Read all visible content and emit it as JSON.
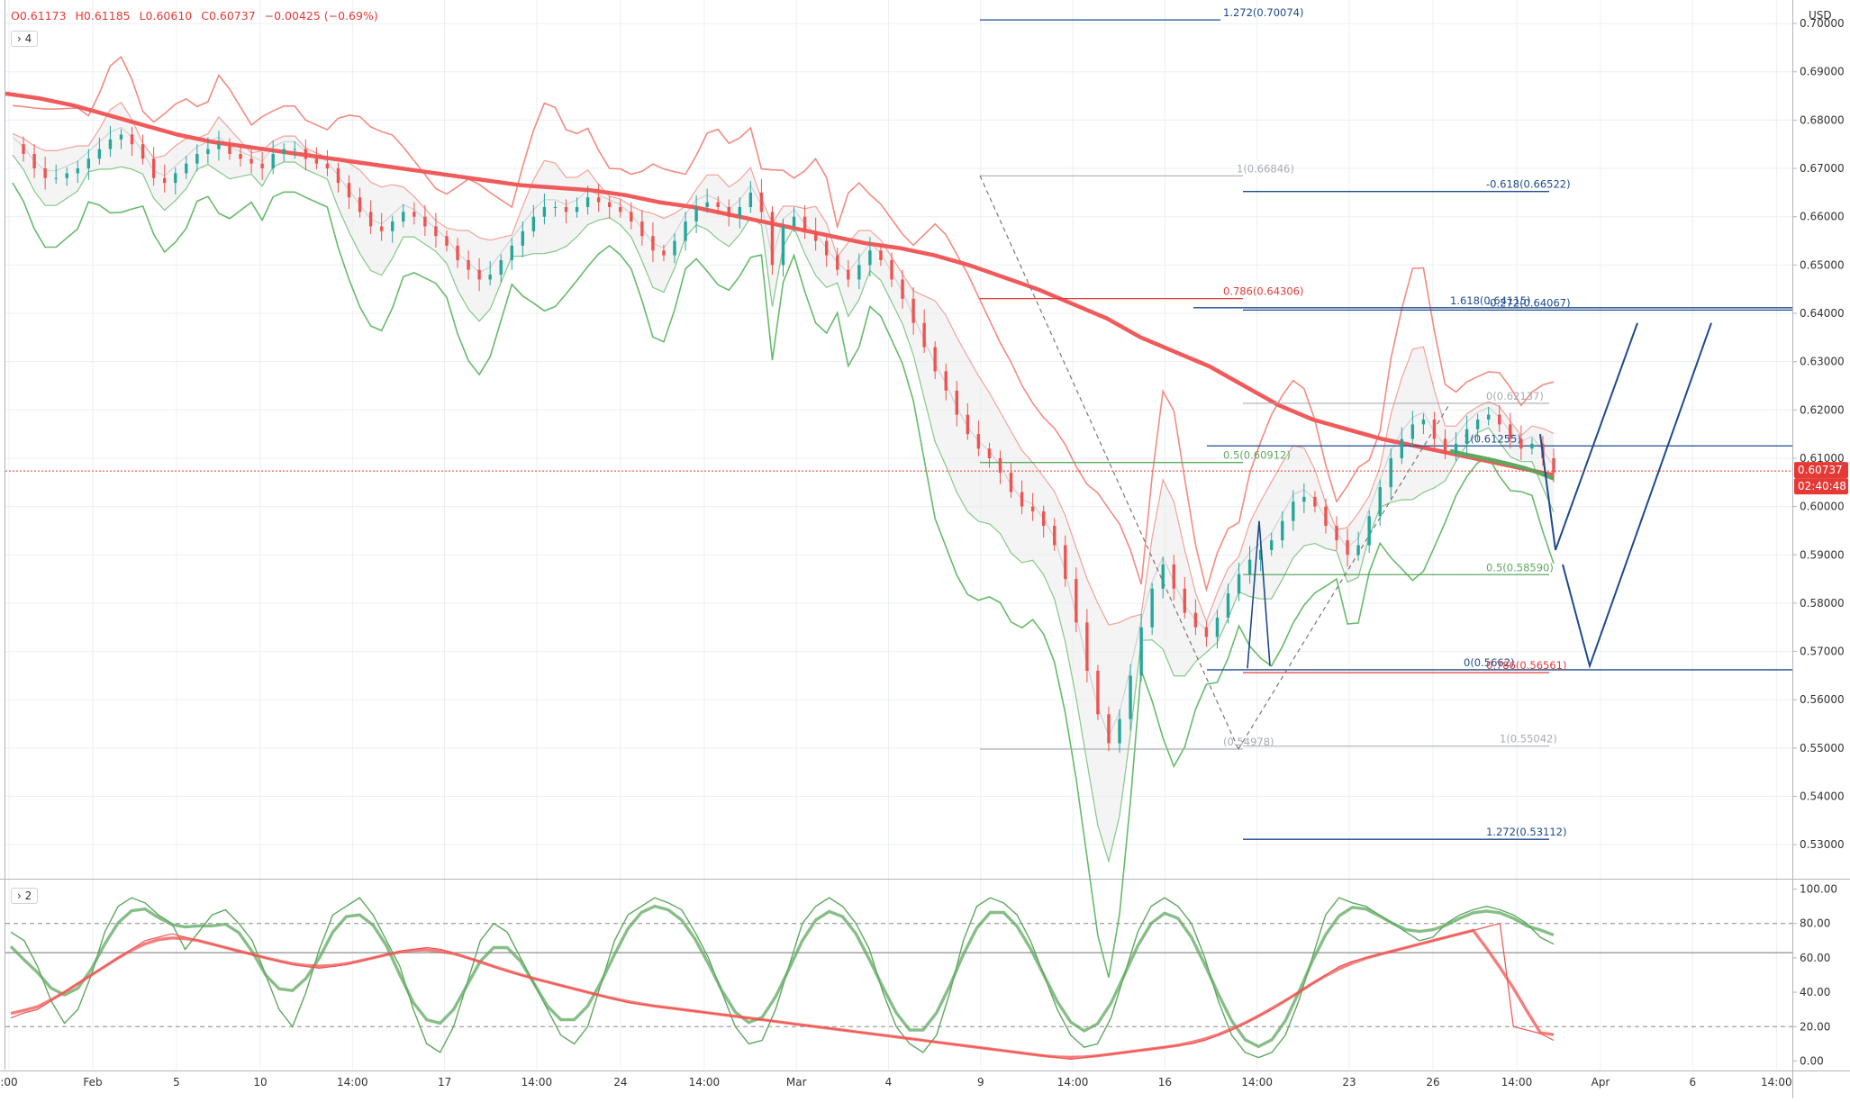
{
  "header": {
    "ohlc": {
      "open": "O0.61173",
      "high": "H0.61185",
      "low": "L0.60610",
      "close": "C0.60737",
      "change": "−0.00425 (−0.69%)"
    },
    "main_pane_tag": "4",
    "osc_pane_tag": "2",
    "currency": "USD"
  },
  "price_badge": {
    "value": "0.60737",
    "countdown": "02:40:48"
  },
  "colors": {
    "up": "#26a69a",
    "down": "#ef5350",
    "ma": "#f05a5a",
    "ma_green": "#5fa85f",
    "band_red": "#f28b82",
    "band_green": "#66bb6a",
    "fib_blue": "#1e4a8c",
    "grid": "#eceff3"
  },
  "chart_data": [
    {
      "type": "candlestick",
      "y_axis": {
        "range": [
          0.525,
          0.703
        ],
        "ticks": [
          "0.53000",
          "0.54000",
          "0.55000",
          "0.56000",
          "0.57000",
          "0.58000",
          "0.59000",
          "0.60000",
          "0.61000",
          "0.62000",
          "0.63000",
          "0.64000",
          "0.65000",
          "0.66000",
          "0.67000",
          "0.68000",
          "0.69000",
          "0.70000"
        ],
        "tick_values": [
          0.53,
          0.54,
          0.55,
          0.56,
          0.57,
          0.58,
          0.59,
          0.6,
          0.61,
          0.62,
          0.63,
          0.64,
          0.65,
          0.66,
          0.67,
          0.68,
          0.69,
          0.7
        ]
      },
      "x_axis": {
        "ticks": [
          ":00",
          "Feb",
          "5",
          "10",
          "14:00",
          "17",
          "14:00",
          "24",
          "14:00",
          "Mar",
          "4",
          "9",
          "14:00",
          "16",
          "14:00",
          "23",
          "26",
          "14:00",
          "Apr",
          "6",
          "14:00"
        ],
        "tick_index": [
          0,
          10,
          20,
          30,
          41,
          52,
          63,
          73,
          83,
          94,
          105,
          116,
          127,
          138,
          149,
          160,
          170,
          180,
          190,
          201,
          211
        ]
      },
      "price_path": [
        0.675,
        0.673,
        0.67,
        0.668,
        0.668,
        0.669,
        0.67,
        0.672,
        0.674,
        0.676,
        0.677,
        0.675,
        0.672,
        0.668,
        0.667,
        0.669,
        0.671,
        0.673,
        0.674,
        0.675,
        0.673,
        0.672,
        0.671,
        0.67,
        0.673,
        0.674,
        0.674,
        0.672,
        0.671,
        0.67,
        0.667,
        0.664,
        0.661,
        0.658,
        0.657,
        0.659,
        0.661,
        0.66,
        0.658,
        0.656,
        0.654,
        0.651,
        0.649,
        0.647,
        0.648,
        0.651,
        0.654,
        0.657,
        0.66,
        0.662,
        0.662,
        0.661,
        0.662,
        0.664,
        0.663,
        0.662,
        0.661,
        0.659,
        0.656,
        0.653,
        0.652,
        0.655,
        0.659,
        0.662,
        0.663,
        0.662,
        0.66,
        0.662,
        0.665,
        0.661,
        0.65,
        0.658,
        0.66,
        0.657,
        0.655,
        0.652,
        0.649,
        0.647,
        0.65,
        0.653,
        0.651,
        0.647,
        0.643,
        0.638,
        0.633,
        0.628,
        0.624,
        0.619,
        0.615,
        0.612,
        0.61,
        0.607,
        0.603,
        0.6,
        0.599,
        0.596,
        0.592,
        0.585,
        0.576,
        0.566,
        0.557,
        0.551,
        0.556,
        0.565,
        0.575,
        0.583,
        0.588,
        0.583,
        0.578,
        0.575,
        0.573,
        0.577,
        0.582,
        0.586,
        0.589,
        0.591,
        0.593,
        0.597,
        0.601,
        0.602,
        0.6,
        0.596,
        0.593,
        0.59,
        0.592,
        0.598,
        0.604,
        0.61,
        0.614,
        0.617,
        0.618,
        0.614,
        0.611,
        0.613,
        0.616,
        0.618,
        0.619,
        0.617,
        0.614,
        0.612,
        0.613,
        0.61,
        0.607
      ],
      "ma_path": [
        0.6855,
        0.6845,
        0.683,
        0.681,
        0.679,
        0.677,
        0.6755,
        0.6745,
        0.6735,
        0.6725,
        0.6715,
        0.6705,
        0.6695,
        0.6685,
        0.6675,
        0.6665,
        0.666,
        0.6655,
        0.6645,
        0.663,
        0.662,
        0.6605,
        0.659,
        0.6575,
        0.656,
        0.6545,
        0.6535,
        0.652,
        0.65,
        0.6475,
        0.645,
        0.642,
        0.639,
        0.635,
        0.632,
        0.629,
        0.625,
        0.621,
        0.618,
        0.616,
        0.614,
        0.6125,
        0.611,
        0.6095,
        0.608,
        0.6065
      ],
      "ma_green_path": [
        0.6115,
        0.6108,
        0.6102,
        0.6095,
        0.6088,
        0.608,
        0.607,
        0.6058
      ],
      "fib_levels": [
        {
          "label": "1.272(0.70074)",
          "value": 0.70074,
          "color": "blue"
        },
        {
          "label": "1(0.66846)",
          "value": 0.66846,
          "color": "gray"
        },
        {
          "label": "-0.618(0.66522)",
          "value": 0.66522,
          "color": "blue"
        },
        {
          "label": "0.786(0.64306)",
          "value": 0.64306,
          "color": "red"
        },
        {
          "label": "1.618(0.64115)",
          "value": 0.64115,
          "color": "blue"
        },
        {
          "label": "-0.272(0.64067)",
          "value": 0.64067,
          "color": "blue"
        },
        {
          "label": "0(0.62137)",
          "value": 0.62137,
          "color": "gray"
        },
        {
          "label": "1(0.61255)",
          "value": 0.61255,
          "color": "blue"
        },
        {
          "label": "0.5(0.60912)",
          "value": 0.60912,
          "color": "green"
        },
        {
          "label": "0.5(0.58590)",
          "value": 0.5859,
          "color": "green"
        },
        {
          "label": "0(0.5662)",
          "value": 0.5662,
          "color": "blue"
        },
        {
          "label": "0.786(0.56561)",
          "value": 0.56561,
          "color": "red"
        },
        {
          "label": "(0.54978)",
          "value": 0.54978,
          "color": "gray"
        },
        {
          "label": "1(0.55042)",
          "value": 0.55042,
          "color": "gray"
        },
        {
          "label": "1.272(0.53112)",
          "value": 0.53112,
          "color": "blue"
        }
      ],
      "projection_paths": [
        [
          [
            0.615,
            1
          ],
          [
            0.591,
            0
          ],
          [
            0.638,
            0
          ]
        ],
        [
          [
            0.588,
            0
          ],
          [
            0.567,
            0
          ],
          [
            0.638,
            0
          ]
        ]
      ]
    },
    {
      "type": "line",
      "y_axis": {
        "range": [
          -5,
          105
        ],
        "ticks": [
          "0.00",
          "20.00",
          "40.00",
          "60.00",
          "80.00",
          "100.00"
        ],
        "tick_values": [
          0,
          20,
          40,
          60,
          80,
          100
        ],
        "dashed_levels": [
          20,
          80
        ],
        "solid_level": 63
      },
      "series": [
        {
          "color": "#5fa85f",
          "values": [
            75,
            70,
            55,
            35,
            22,
            30,
            50,
            75,
            90,
            95,
            92,
            85,
            80,
            65,
            75,
            85,
            88,
            80,
            70,
            50,
            30,
            20,
            40,
            65,
            85,
            90,
            95,
            85,
            70,
            55,
            30,
            10,
            5,
            20,
            45,
            70,
            80,
            75,
            60,
            45,
            30,
            15,
            10,
            20,
            45,
            70,
            85,
            90,
            95,
            92,
            88,
            75,
            60,
            40,
            20,
            10,
            12,
            30,
            55,
            80,
            90,
            95,
            90,
            80,
            65,
            40,
            20,
            10,
            5,
            15,
            40,
            70,
            90,
            95,
            92,
            85,
            70,
            50,
            30,
            15,
            8,
            10,
            25,
            50,
            75,
            90,
            95,
            90,
            80,
            60,
            35,
            15,
            5,
            2,
            5,
            15,
            35,
            60,
            85,
            95,
            92,
            90,
            85,
            80,
            75,
            70,
            72,
            80,
            85,
            88,
            90,
            88,
            85,
            80,
            72,
            68
          ]
        },
        {
          "color": "#ef5350",
          "values": [
            25,
            28,
            30,
            35,
            40,
            45,
            50,
            55,
            60,
            65,
            70,
            72,
            74,
            72,
            70,
            68,
            66,
            64,
            62,
            60,
            58,
            56,
            55,
            54,
            55,
            56,
            58,
            60,
            62,
            64,
            65,
            66,
            65,
            63,
            60,
            58,
            55,
            52,
            50,
            48,
            46,
            44,
            42,
            40,
            38,
            36,
            34,
            33,
            32,
            31,
            30,
            29,
            28,
            27,
            26,
            25,
            24,
            23,
            22,
            21,
            20,
            19,
            18,
            17,
            16,
            15,
            14,
            13,
            12,
            11,
            10,
            9,
            8,
            7,
            6,
            5,
            4,
            3,
            2,
            1,
            2,
            3,
            4,
            5,
            6,
            7,
            8,
            9,
            10,
            12,
            15,
            18,
            22,
            26,
            30,
            35,
            40,
            45,
            50,
            55,
            58,
            60,
            62,
            64,
            66,
            68,
            70,
            72,
            74,
            76,
            78,
            80,
            20,
            18,
            16,
            12
          ]
        }
      ]
    }
  ]
}
